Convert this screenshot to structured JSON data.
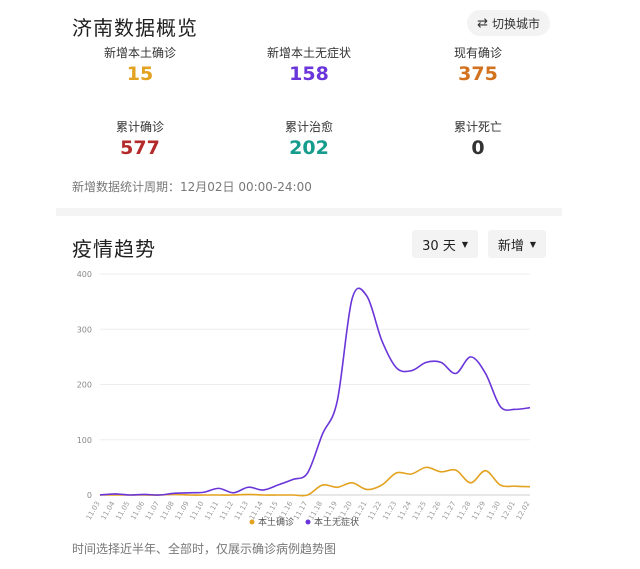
{
  "overview": {
    "title": "济南数据概览",
    "switch_label": "切换城市",
    "stats": [
      {
        "label": "新增本土确诊",
        "value": "15",
        "color": "#e3a21f"
      },
      {
        "label": "新增本土无症状",
        "value": "158",
        "color": "#6a35d9"
      },
      {
        "label": "现有确诊",
        "value": "375",
        "color": "#d2721e"
      },
      {
        "label": "累计确诊",
        "value": "577",
        "color": "#b42a2a"
      },
      {
        "label": "累计治愈",
        "value": "202",
        "color": "#169c8c"
      },
      {
        "label": "累计死亡",
        "value": "0",
        "color": "#333333"
      }
    ],
    "note": "新增数据统计周期：12月02日 00:00-24:00"
  },
  "trend": {
    "title": "疫情趋势",
    "range_label": "30 天",
    "type_label": "新增",
    "note": "时间选择近半年、全部时，仅展示确诊病例趋势图"
  },
  "chart_data": {
    "type": "line",
    "x": [
      "11.03",
      "11.04",
      "11.05",
      "11.06",
      "11.07",
      "11.08",
      "11.09",
      "11.10",
      "11.11",
      "11.12",
      "11.13",
      "11.14",
      "11.15",
      "11.16",
      "11.17",
      "11.18",
      "11.19",
      "11.20",
      "11.21",
      "11.22",
      "11.23",
      "11.24",
      "11.25",
      "11.26",
      "11.27",
      "11.28",
      "11.29",
      "11.30",
      "12.01",
      "12.02"
    ],
    "ylim": [
      0,
      400
    ],
    "yticks": [
      0,
      100,
      200,
      300,
      400
    ],
    "series": [
      {
        "name": "本土确诊",
        "color": "#e3a21f",
        "values": [
          0,
          0,
          0,
          0,
          0,
          1,
          0,
          0,
          0,
          0,
          1,
          0,
          0,
          0,
          0,
          18,
          14,
          22,
          10,
          18,
          40,
          38,
          50,
          42,
          45,
          22,
          44,
          18,
          16,
          15
        ]
      },
      {
        "name": "本土无症状",
        "color": "#6a35d9",
        "values": [
          0,
          2,
          0,
          1,
          0,
          3,
          4,
          5,
          12,
          4,
          14,
          9,
          18,
          28,
          40,
          110,
          170,
          355,
          360,
          280,
          230,
          225,
          240,
          240,
          220,
          250,
          220,
          160,
          155,
          158
        ]
      }
    ],
    "legend_position": "bottom"
  }
}
